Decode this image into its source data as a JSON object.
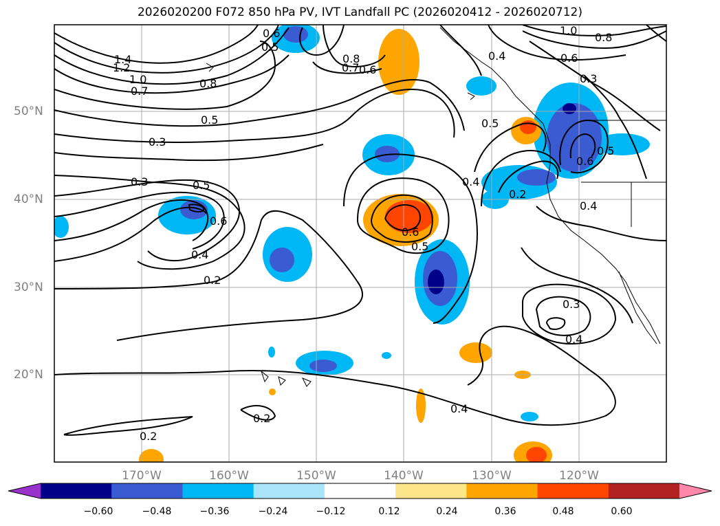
{
  "title": "2026020200 F072 850 hPa PV, IVT Landfall PC (2026020412 - 2026020712)",
  "lat_labels": [
    "50°N",
    "40°N",
    "30°N",
    "20°N"
  ],
  "lon_labels": [
    "170°W",
    "160°W",
    "150°W",
    "140°W",
    "130°W",
    "120°W"
  ],
  "contour_labels": [
    "1.4",
    "1.2",
    "1.0",
    "0.7",
    "0.8",
    "0.5",
    "0.3",
    "0.3",
    "0.5",
    "0.6",
    "0.4",
    "0.2",
    "0.6",
    "0.5",
    "0.8",
    "0.7",
    "0.6",
    "0.5",
    "0.6",
    "0.5",
    "0.4",
    "0.4",
    "0.4",
    "1.0",
    "0.8",
    "0.6",
    "0.3",
    "0.6",
    "0.5",
    "0.2",
    "0.4",
    "0.3",
    "0.4",
    "0.2",
    "0.2"
  ],
  "colorbar": {
    "ticks": [
      "−0.60",
      "−0.48",
      "−0.36",
      "−0.24",
      "−0.12",
      "0.12",
      "0.24",
      "0.36",
      "0.48",
      "0.60"
    ],
    "colors": [
      "#9932cc",
      "#00008b",
      "#3a5bd1",
      "#00b7f5",
      "#a9e4fa",
      "#ffffff",
      "#fde68a",
      "#ffa500",
      "#ff4500",
      "#b22222",
      "#ff88aa"
    ]
  }
}
